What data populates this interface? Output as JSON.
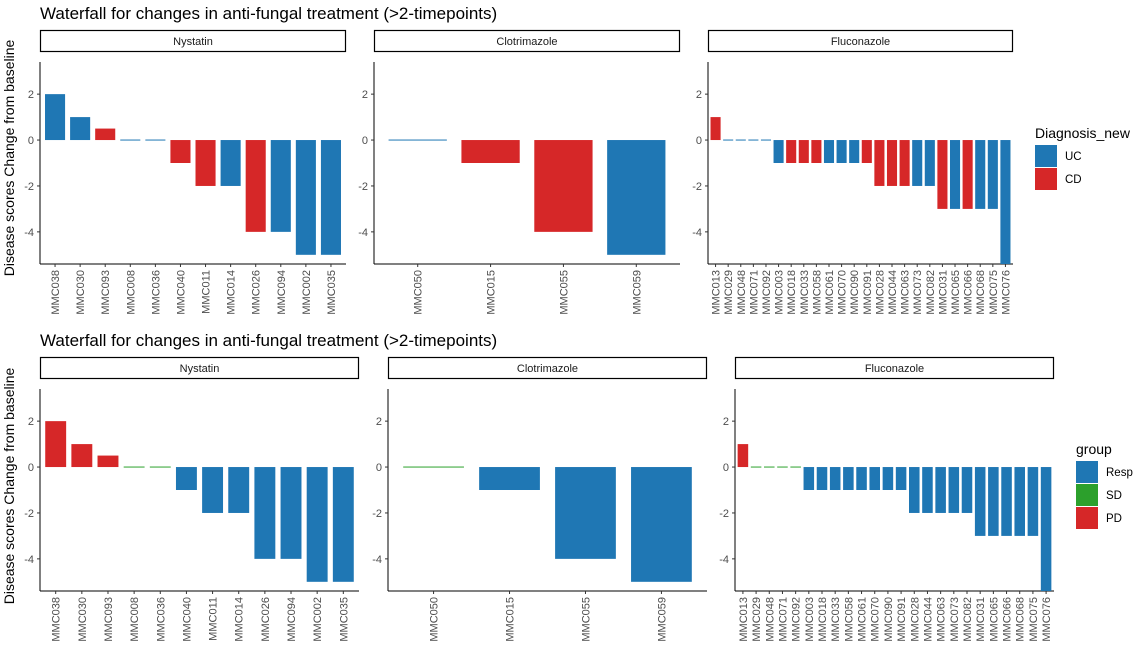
{
  "chart_data": [
    {
      "type": "bar",
      "title": "Waterfall for changes in anti-fungal treatment (>2-timepoints)",
      "ylabel": "Disease scores Change from baseline",
      "ylim": [
        -5.4,
        3.4
      ],
      "yticks": [
        -4,
        -2,
        0,
        2
      ],
      "legend": {
        "title": "Diagnosis_new",
        "placement": "right",
        "entries": [
          {
            "label": "UC",
            "color": "#1f77b4"
          },
          {
            "label": "CD",
            "color": "#d62728"
          }
        ]
      },
      "panels": [
        {
          "strip": "Nystatin",
          "categories": [
            "MMC038",
            "MMC030",
            "MMC093",
            "MMC008",
            "MMC036",
            "MMC040",
            "MMC011",
            "MMC014",
            "MMC026",
            "MMC094",
            "MMC002",
            "MMC035"
          ],
          "values": [
            2,
            1,
            0.5,
            0,
            0,
            -1,
            -2,
            -2,
            -4,
            -4,
            -5,
            -5
          ],
          "groups": [
            "UC",
            "UC",
            "CD",
            "UC",
            "UC",
            "CD",
            "CD",
            "UC",
            "CD",
            "UC",
            "UC",
            "UC"
          ]
        },
        {
          "strip": "Clotrimazole",
          "categories": [
            "MMC050",
            "MMC015",
            "MMC055",
            "MMC059"
          ],
          "values": [
            0,
            -1,
            -4,
            -5
          ],
          "groups": [
            "UC",
            "CD",
            "CD",
            "UC"
          ]
        },
        {
          "strip": "Fluconazole",
          "categories": [
            "MMC013",
            "MMC029",
            "MMC048",
            "MMC071",
            "MMC092",
            "MMC003",
            "MMC018",
            "MMC033",
            "MMC058",
            "MMC061",
            "MMC070",
            "MMC090",
            "MMC091",
            "MMC028",
            "MMC044",
            "MMC063",
            "MMC073",
            "MMC082",
            "MMC031",
            "MMC065",
            "MMC066",
            "MMC068",
            "MMC075",
            "MMC076"
          ],
          "values": [
            1,
            0,
            0,
            0,
            0,
            -1,
            -1,
            -1,
            -1,
            -1,
            -1,
            -1,
            -1,
            -2,
            -2,
            -2,
            -2,
            -2,
            -3,
            -3,
            -3,
            -3,
            -3,
            -5.4
          ],
          "groups": [
            "CD",
            "UC",
            "UC",
            "UC",
            "UC",
            "UC",
            "CD",
            "CD",
            "CD",
            "UC",
            "UC",
            "UC",
            "CD",
            "CD",
            "CD",
            "CD",
            "UC",
            "UC",
            "CD",
            "UC",
            "CD",
            "UC",
            "UC",
            "UC"
          ]
        }
      ]
    },
    {
      "type": "bar",
      "title": "Waterfall for changes in anti-fungal treatment (>2-timepoints)",
      "ylabel": "Disease scores Change from baseline",
      "ylim": [
        -5.4,
        3.4
      ],
      "yticks": [
        -4,
        -2,
        0,
        2
      ],
      "legend": {
        "title": "group",
        "placement": "right",
        "entries": [
          {
            "label": "Resp",
            "color": "#1f77b4"
          },
          {
            "label": "SD",
            "color": "#2ca02c"
          },
          {
            "label": "PD",
            "color": "#d62728"
          }
        ]
      },
      "panels": [
        {
          "strip": "Nystatin",
          "categories": [
            "MMC038",
            "MMC030",
            "MMC093",
            "MMC008",
            "MMC036",
            "MMC040",
            "MMC011",
            "MMC014",
            "MMC026",
            "MMC094",
            "MMC002",
            "MMC035"
          ],
          "values": [
            2,
            1,
            0.5,
            0,
            0,
            -1,
            -2,
            -2,
            -4,
            -4,
            -5,
            -5
          ],
          "groups": [
            "PD",
            "PD",
            "PD",
            "SD",
            "SD",
            "Resp",
            "Resp",
            "Resp",
            "Resp",
            "Resp",
            "Resp",
            "Resp"
          ]
        },
        {
          "strip": "Clotrimazole",
          "categories": [
            "MMC050",
            "MMC015",
            "MMC055",
            "MMC059"
          ],
          "values": [
            0,
            -1,
            -4,
            -5
          ],
          "groups": [
            "SD",
            "Resp",
            "Resp",
            "Resp"
          ]
        },
        {
          "strip": "Fluconazole",
          "categories": [
            "MMC013",
            "MMC029",
            "MMC048",
            "MMC071",
            "MMC092",
            "MMC003",
            "MMC018",
            "MMC033",
            "MMC058",
            "MMC061",
            "MMC070",
            "MMC090",
            "MMC091",
            "MMC028",
            "MMC044",
            "MMC063",
            "MMC073",
            "MMC082",
            "MMC031",
            "MMC065",
            "MMC066",
            "MMC068",
            "MMC075",
            "MMC076"
          ],
          "values": [
            1,
            0,
            0,
            0,
            0,
            -1,
            -1,
            -1,
            -1,
            -1,
            -1,
            -1,
            -1,
            -2,
            -2,
            -2,
            -2,
            -2,
            -3,
            -3,
            -3,
            -3,
            -3,
            -5.4
          ],
          "groups": [
            "PD",
            "SD",
            "SD",
            "SD",
            "SD",
            "Resp",
            "Resp",
            "Resp",
            "Resp",
            "Resp",
            "Resp",
            "Resp",
            "Resp",
            "Resp",
            "Resp",
            "Resp",
            "Resp",
            "Resp",
            "Resp",
            "Resp",
            "Resp",
            "Resp",
            "Resp",
            "Resp"
          ]
        }
      ]
    }
  ]
}
